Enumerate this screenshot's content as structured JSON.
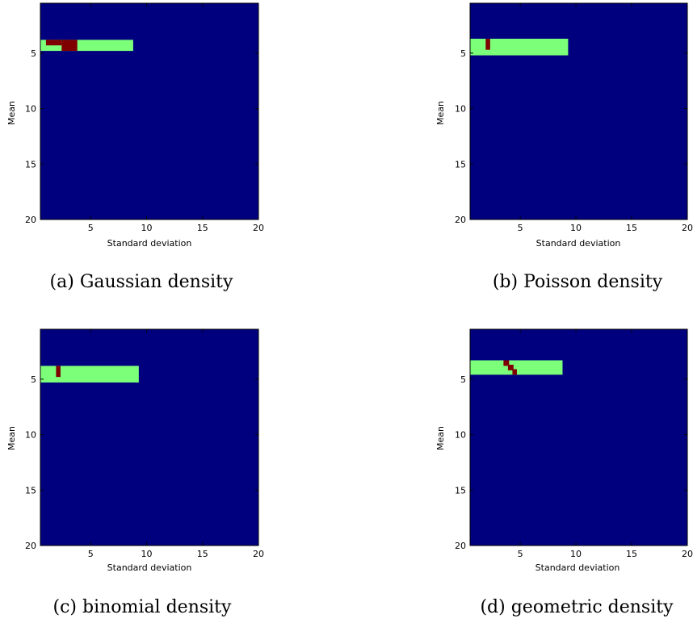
{
  "colors": {
    "background": "#00007f",
    "region": "#7cff79",
    "marker": "#7f0000",
    "frame": "#000000"
  },
  "chart_data": [
    {
      "type": "heatmap",
      "caption": "(a) Gaussian density",
      "xlabel": "Standard deviation",
      "ylabel": "Mean",
      "xlim": [
        0.5,
        20
      ],
      "ylim": [
        20,
        0.5
      ],
      "x_ticks": [
        5,
        10,
        15,
        20
      ],
      "y_ticks": [
        5,
        10,
        15,
        20
      ],
      "grid": false,
      "region": {
        "x": [
          0.5,
          8.8
        ],
        "y": [
          3.8,
          4.8
        ]
      },
      "marker_cells": [
        {
          "x": [
            1.0,
            2.4
          ],
          "y": [
            3.8,
            4.3
          ]
        },
        {
          "x": [
            2.4,
            3.8
          ],
          "y": [
            3.8,
            4.8
          ]
        }
      ]
    },
    {
      "type": "heatmap",
      "caption": "(b) Poisson density",
      "xlabel": "Standard deviation",
      "ylabel": "Mean",
      "xlim": [
        0.5,
        20
      ],
      "ylim": [
        20,
        0.5
      ],
      "x_ticks": [
        5,
        10,
        15,
        20
      ],
      "y_ticks": [
        5,
        10,
        15,
        20
      ],
      "grid": false,
      "region": {
        "x": [
          0.5,
          9.3
        ],
        "y": [
          3.7,
          5.2
        ]
      },
      "marker_cells": [
        {
          "x": [
            1.9,
            2.3
          ],
          "y": [
            3.7,
            4.7
          ]
        }
      ]
    },
    {
      "type": "heatmap",
      "caption": "(c) binomial density",
      "xlabel": "Standard deviation",
      "ylabel": "Mean",
      "xlim": [
        0.5,
        20
      ],
      "ylim": [
        20,
        0.5
      ],
      "x_ticks": [
        5,
        10,
        15,
        20
      ],
      "y_ticks": [
        5,
        10,
        15,
        20
      ],
      "grid": false,
      "region": {
        "x": [
          0.5,
          9.3
        ],
        "y": [
          3.8,
          5.3
        ]
      },
      "marker_cells": [
        {
          "x": [
            1.9,
            2.3
          ],
          "y": [
            3.8,
            4.8
          ]
        }
      ]
    },
    {
      "type": "heatmap",
      "caption": "(d) geometric density",
      "xlabel": "Standard deviation",
      "ylabel": "Mean",
      "xlim": [
        0.5,
        20
      ],
      "ylim": [
        20,
        0.5
      ],
      "x_ticks": [
        5,
        10,
        15,
        20
      ],
      "y_ticks": [
        5,
        10,
        15,
        20
      ],
      "grid": false,
      "region": {
        "x": [
          0.5,
          8.8
        ],
        "y": [
          3.3,
          4.6
        ]
      },
      "marker_cells": [
        {
          "x": [
            3.5,
            4.0
          ],
          "y": [
            3.3,
            3.8
          ]
        },
        {
          "x": [
            3.9,
            4.4
          ],
          "y": [
            3.7,
            4.2
          ]
        },
        {
          "x": [
            4.3,
            4.7
          ],
          "y": [
            4.1,
            4.6
          ]
        }
      ]
    }
  ]
}
